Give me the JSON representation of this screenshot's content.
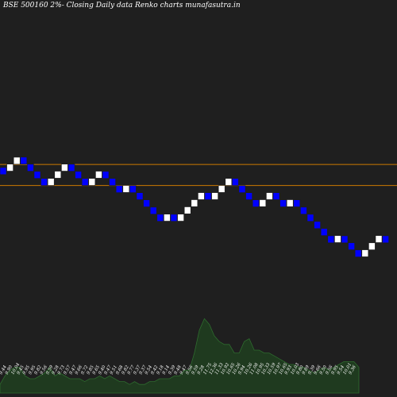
{
  "chart_data": {
    "type": "renko",
    "title": "BSE 500160  2%-  Closing Daily data  Renko  charts munafasutra.in",
    "brick_size_pct": 2,
    "colors": {
      "background": "#1f1f1f",
      "up": "#ffffff",
      "down": "#0000ff",
      "level_line": "#cc7a00",
      "volume": "#1f3a1f",
      "volume_edge": "#2e6b2e"
    },
    "levels": [
      12.1,
      11.4
    ],
    "bricks": [
      {
        "dir": "down",
        "close": 11.76
      },
      {
        "dir": "up",
        "close": 12.11
      },
      {
        "dir": "up",
        "close": 12.35
      },
      {
        "dir": "down",
        "close": 12.11
      },
      {
        "dir": "down",
        "close": 11.87
      },
      {
        "dir": "down",
        "close": 11.63
      },
      {
        "dir": "down",
        "close": 11.4
      },
      {
        "dir": "up",
        "close": 11.63
      },
      {
        "dir": "up",
        "close": 11.87
      },
      {
        "dir": "up",
        "close": 12.11
      },
      {
        "dir": "down",
        "close": 11.87
      },
      {
        "dir": "down",
        "close": 11.63
      },
      {
        "dir": "down",
        "close": 11.4
      },
      {
        "dir": "up",
        "close": 11.63
      },
      {
        "dir": "up",
        "close": 11.87
      },
      {
        "dir": "down",
        "close": 11.63
      },
      {
        "dir": "down",
        "close": 11.4
      },
      {
        "dir": "down",
        "close": 11.17
      },
      {
        "dir": "up",
        "close": 11.4
      },
      {
        "dir": "down",
        "close": 11.17
      },
      {
        "dir": "down",
        "close": 10.95
      },
      {
        "dir": "down",
        "close": 10.73
      },
      {
        "dir": "down",
        "close": 10.51
      },
      {
        "dir": "down",
        "close": 10.3
      },
      {
        "dir": "up",
        "close": 10.51
      },
      {
        "dir": "down",
        "close": 10.3
      },
      {
        "dir": "up",
        "close": 10.51
      },
      {
        "dir": "up",
        "close": 10.73
      },
      {
        "dir": "up",
        "close": 10.95
      },
      {
        "dir": "up",
        "close": 11.17
      },
      {
        "dir": "down",
        "close": 10.95
      },
      {
        "dir": "up",
        "close": 11.17
      },
      {
        "dir": "up",
        "close": 11.4
      },
      {
        "dir": "up",
        "close": 11.63
      },
      {
        "dir": "down",
        "close": 11.4
      },
      {
        "dir": "down",
        "close": 11.17
      },
      {
        "dir": "down",
        "close": 10.95
      },
      {
        "dir": "down",
        "close": 10.73
      },
      {
        "dir": "up",
        "close": 10.95
      },
      {
        "dir": "up",
        "close": 11.17
      },
      {
        "dir": "down",
        "close": 10.95
      },
      {
        "dir": "down",
        "close": 10.73
      },
      {
        "dir": "up",
        "close": 10.95
      },
      {
        "dir": "down",
        "close": 10.73
      },
      {
        "dir": "down",
        "close": 10.51
      },
      {
        "dir": "down",
        "close": 10.3
      },
      {
        "dir": "down",
        "close": 10.09
      },
      {
        "dir": "down",
        "close": 9.89
      },
      {
        "dir": "down",
        "close": 9.69
      },
      {
        "dir": "up",
        "close": 9.89
      },
      {
        "dir": "down",
        "close": 9.69
      },
      {
        "dir": "down",
        "close": 9.5
      },
      {
        "dir": "down",
        "close": 9.31
      },
      {
        "dir": "up",
        "close": 9.5
      },
      {
        "dir": "up",
        "close": 9.69
      },
      {
        "dir": "up",
        "close": 9.89
      },
      {
        "dir": "down",
        "close": 9.69
      }
    ],
    "volume": [
      3,
      6,
      8,
      9,
      9,
      6,
      5,
      5,
      6,
      7,
      9,
      6,
      7,
      6,
      5,
      5,
      5,
      4,
      5,
      5,
      6,
      5,
      6,
      5,
      4,
      4,
      3,
      4,
      3,
      3,
      4,
      4,
      5,
      5,
      5,
      6,
      6,
      8,
      8,
      14,
      22,
      26,
      24,
      20,
      18,
      17,
      17,
      14,
      14,
      18,
      19,
      15,
      15,
      14,
      14,
      13,
      12,
      11,
      10,
      10,
      9,
      9,
      8,
      7,
      8,
      9,
      8,
      9,
      10,
      11,
      11,
      11,
      9
    ],
    "bottom_labels": [
      "9.44",
      "9.90",
      "10.04",
      "9.45",
      "9.95",
      "9.95",
      "9.82",
      "9.56",
      "9.59",
      "9.28",
      "9.73",
      "9.57",
      "9.47",
      "9.66",
      "9.72",
      "9.85",
      "9.65",
      "9.40",
      "9.47",
      "9.51",
      "9.68",
      "9.82",
      "9.77",
      "9.37",
      "9.37",
      "9.54",
      "9.42",
      "9.18",
      "9.14",
      "9.39",
      "9.48",
      "9.47",
      "9.56",
      "9.59",
      "9.28",
      "11.75",
      "12.36",
      "11.33",
      "10.92",
      "10.65",
      "10.26",
      "9.94",
      "10.26",
      "11.08",
      "10.95",
      "10.33",
      "10.59",
      "10.97",
      "10.65",
      "9.93",
      "10.03",
      "9.80",
      "9.89",
      "9.39",
      "9.66",
      "9.50",
      "9.56",
      "9.95",
      "9.54",
      "10.01",
      "9.36"
    ]
  }
}
